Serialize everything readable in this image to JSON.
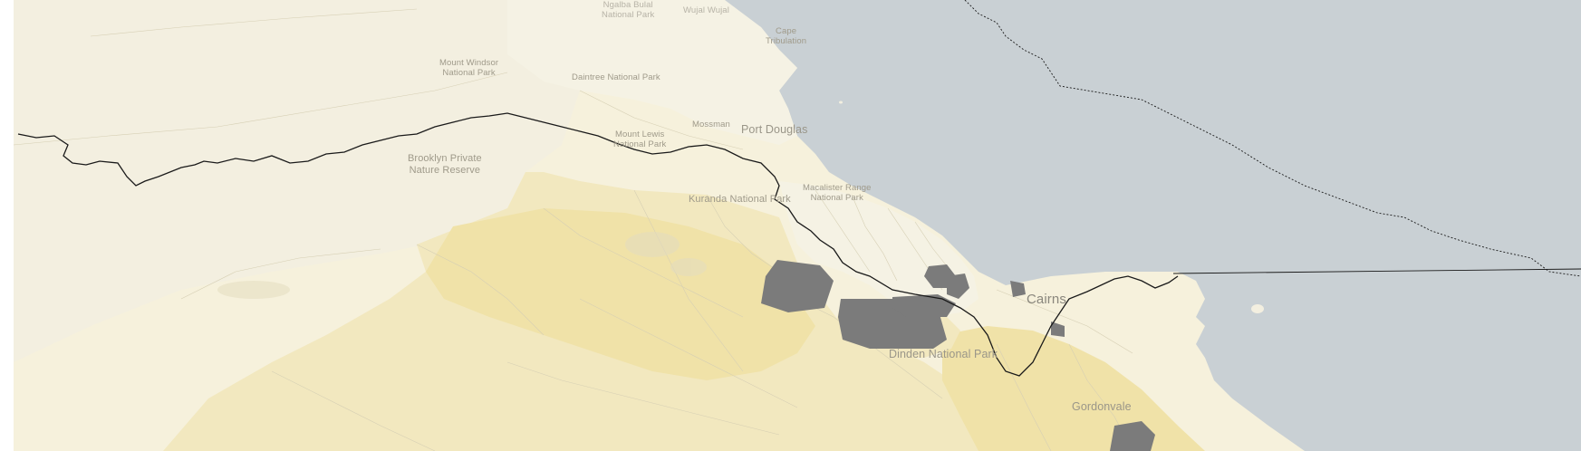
{
  "map": {
    "colors": {
      "ocean": "#c9d0d4",
      "land_base": "#f6f1dc",
      "land_light": "#f3efe0",
      "land_pale_cream": "#f5f2e4",
      "region_mid": "#f2e8bf",
      "region_deeper": "#f0e2a8",
      "region_highlight_dark": "#7b7b7b",
      "boundary": "#1a1a1a",
      "suburb_lines": "#d6cfb4"
    },
    "labels": {
      "ngalba_bulal": "Ngalba Bulal\nNational Park",
      "wujal_wujal": "Wujal Wujal",
      "cape_tribulation": "Cape\nTribulation",
      "mount_windsor": "Mount Windsor\nNational Park",
      "daintree": "Daintree National Park",
      "mossman": "Mossman",
      "port_douglas": "Port Douglas",
      "mount_lewis": "Mount Lewis\nNational Park",
      "brooklyn": "Brooklyn Private\nNature Reserve",
      "macalister": "Macalister Range\nNational Park",
      "kuranda": "Kuranda National Park",
      "cairns": "Cairns",
      "dinden": "Dinden National Park",
      "gordonvale": "Gordonvale"
    }
  }
}
